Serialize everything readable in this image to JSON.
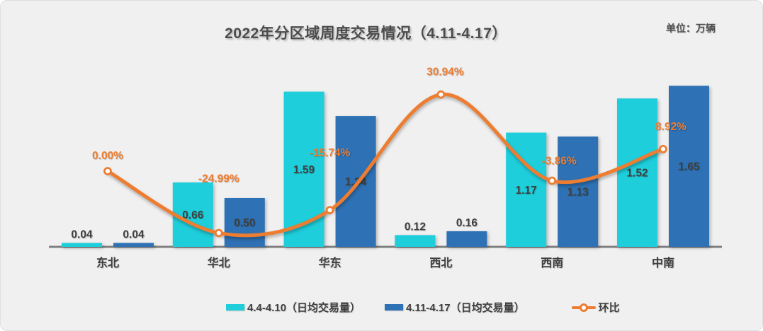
{
  "title": "2022年分区域周度交易情况（4.11-4.17）",
  "unit_label": "单位：万辆",
  "legend": {
    "items": [
      {
        "label": "4.4-4.10（日均交易量）"
      },
      {
        "label": "4.11-4.17（日均交易量）"
      },
      {
        "label": "环比"
      }
    ]
  },
  "colors": {
    "series1_cyan": "#1ECEDB",
    "series2_blue": "#2E71B4",
    "line_orange": "#ED7D31",
    "text_dark": "#3F3F3F",
    "axis_gray": "#7F7F7F",
    "background": "#F0F0F1"
  },
  "chart_data": {
    "type": "bar",
    "subtype": "grouped bars with smoothed line on secondary percent axis",
    "title": "2022年分区域周度交易情况（4.11-4.17）",
    "unit": "万辆",
    "categories": [
      "东北",
      "华北",
      "华东",
      "西北",
      "西南",
      "中南"
    ],
    "series": [
      {
        "name": "4.4-4.10（日均交易量）",
        "type": "bar",
        "color": "#1ECEDB",
        "values": [
          0.04,
          0.66,
          1.59,
          0.12,
          1.17,
          1.52
        ],
        "labels": [
          "0.04",
          "0.66",
          "1.59",
          "0.12",
          "1.17",
          "1.52"
        ]
      },
      {
        "name": "4.11-4.17（日均交易量）",
        "type": "bar",
        "color": "#2E71B4",
        "values": [
          0.04,
          0.5,
          1.34,
          0.16,
          1.13,
          1.65
        ],
        "labels": [
          "0.04",
          "0.50",
          "1.34",
          "0.16",
          "1.13",
          "1.65"
        ]
      },
      {
        "name": "环比",
        "type": "line",
        "color": "#ED7D31",
        "values": [
          0.0,
          -24.99,
          -15.74,
          30.94,
          -3.86,
          8.92
        ],
        "labels": [
          "0.00%",
          "-24.99%",
          "-15.74%",
          "30.94%",
          "-3.86%",
          "8.92%"
        ]
      }
    ],
    "bar_axis": {
      "min": 0,
      "implied_max": 1.8,
      "visible": false
    },
    "pct_axis": {
      "visible": false
    },
    "grid": false,
    "legend_position": "bottom"
  }
}
